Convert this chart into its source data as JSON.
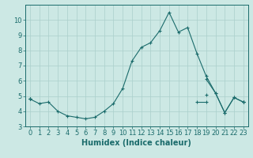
{
  "xlabel": "Humidex (Indice chaleur)",
  "x_values": [
    0,
    1,
    2,
    3,
    4,
    5,
    6,
    7,
    8,
    9,
    10,
    11,
    12,
    13,
    14,
    15,
    16,
    17,
    18,
    19,
    20,
    21,
    22,
    23
  ],
  "line_peak": [
    4.8,
    4.5,
    4.6,
    4.0,
    3.7,
    3.6,
    3.5,
    3.6,
    4.0,
    4.5,
    5.5,
    7.3,
    8.2,
    8.5,
    9.3,
    10.5,
    9.2,
    9.5,
    7.8,
    6.3,
    5.2,
    3.9,
    4.9,
    4.6
  ],
  "line_upper": [
    4.8,
    null,
    null,
    null,
    null,
    null,
    null,
    null,
    null,
    null,
    null,
    null,
    null,
    null,
    null,
    null,
    null,
    null,
    null,
    6.1,
    5.2,
    3.9,
    4.9,
    4.6
  ],
  "line_mid": [
    4.8,
    null,
    null,
    null,
    null,
    null,
    null,
    null,
    null,
    null,
    null,
    null,
    null,
    null,
    null,
    null,
    null,
    null,
    null,
    5.1,
    null,
    null,
    null,
    4.6
  ],
  "line_lower": [
    4.8,
    null,
    null,
    null,
    null,
    null,
    null,
    null,
    null,
    null,
    null,
    null,
    null,
    null,
    null,
    null,
    null,
    null,
    4.6,
    4.6,
    null,
    null,
    null,
    4.6
  ],
  "line_dip": [
    4.8,
    4.5,
    4.6,
    4.0,
    3.7,
    3.6,
    3.5,
    3.6,
    4.0,
    null,
    null,
    null,
    null,
    null,
    null,
    null,
    null,
    null,
    null,
    null,
    null,
    null,
    null,
    null
  ],
  "ylim": [
    3,
    11
  ],
  "yticks": [
    3,
    4,
    5,
    6,
    7,
    8,
    9,
    10
  ],
  "xticks": [
    0,
    1,
    2,
    3,
    4,
    5,
    6,
    7,
    8,
    9,
    10,
    11,
    12,
    13,
    14,
    15,
    16,
    17,
    18,
    19,
    20,
    21,
    22,
    23
  ],
  "line_color": "#1a6b6b",
  "bg_color": "#cce8e4",
  "grid_color": "#aacfcb",
  "tick_fontsize": 6,
  "label_fontsize": 7
}
